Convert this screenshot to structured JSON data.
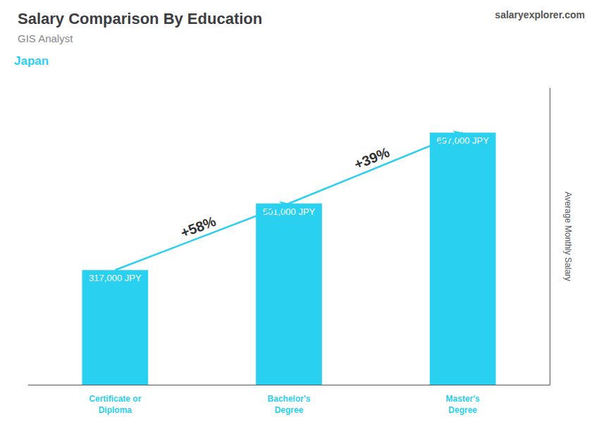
{
  "chart_data": {
    "type": "bar",
    "title": "Salary Comparison By Education",
    "subtitle": "GIS Analyst",
    "caption": "Japan",
    "source": "salaryexplorer.com",
    "ylabel": "Average Monthly Salary",
    "categories": [
      "Certificate or\nDiploma",
      "Bachelor's\nDegree",
      "Master's\nDegree"
    ],
    "values": [
      317000,
      501000,
      697000
    ],
    "value_labels": [
      "317,000 JPY",
      "501,000 JPY",
      "697,000 JPY"
    ],
    "annotations": [
      "+58%",
      "+39%"
    ],
    "color": "#29d0f0",
    "ylim": [
      0,
      820000
    ],
    "grid": false,
    "data_labels": true,
    "tick_labels": "x"
  }
}
